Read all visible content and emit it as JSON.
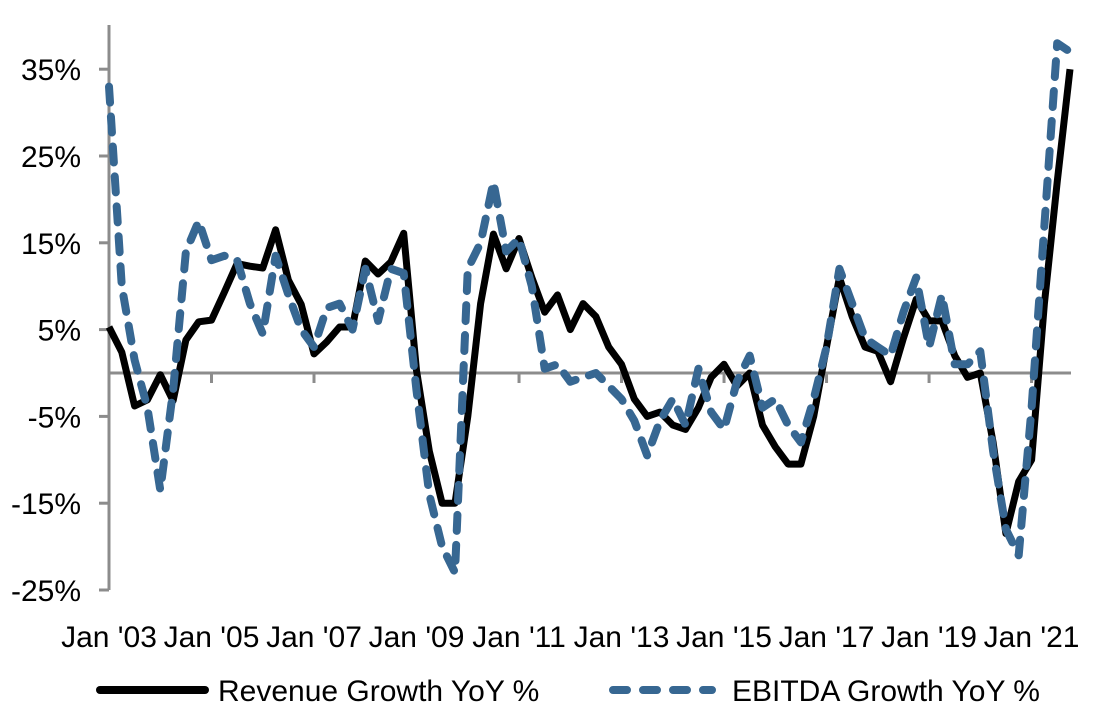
{
  "chart_data": {
    "type": "line",
    "title": "",
    "xlabel": "",
    "ylabel": "",
    "ylim": [
      -25,
      40
    ],
    "y_ticks": [
      35,
      25,
      15,
      5,
      -5,
      -15,
      -25
    ],
    "y_tick_labels": [
      "35%",
      "25%",
      "15%",
      "5%",
      "-5%",
      "-15%",
      "-25%"
    ],
    "x_tick_labels": [
      "Jan '03",
      "Jan '05",
      "Jan '07",
      "Jan '09",
      "Jan '11",
      "Jan '13",
      "Jan '15",
      "Jan '17",
      "Jan '19",
      "Jan '21"
    ],
    "x_frequency": "quarterly",
    "x_start": "Q1 2003",
    "x_end": "Q4 2021",
    "grid": false,
    "zero_line": true,
    "legend_position": "bottom",
    "series": [
      {
        "name": "Revenue Growth YoY %",
        "color": "#000000",
        "style": "solid",
        "values": [
          5.3,
          2.4,
          -3.8,
          -3.1,
          -0.2,
          -3.2,
          3.8,
          5.9,
          6.1,
          9.3,
          12.6,
          12.3,
          12.1,
          16.5,
          10.7,
          7.9,
          2.2,
          3.6,
          5.3,
          5.3,
          12.9,
          11.4,
          12.8,
          16.1,
          0.3,
          -9.0,
          -15.0,
          -15.0,
          -5.0,
          8.0,
          16.0,
          12.0,
          15.5,
          11.0,
          7.0,
          9.0,
          5.0,
          8.0,
          6.5,
          3.0,
          1.0,
          -3.0,
          -5.0,
          -4.5,
          -6.0,
          -6.5,
          -4.0,
          -0.5,
          1.0,
          -1.5,
          0.0,
          -6.0,
          -8.5,
          -10.5,
          -10.5,
          -5.0,
          3.0,
          11.0,
          6.5,
          3.0,
          2.5,
          -1.0,
          4.0,
          8.5,
          6.0,
          6.0,
          2.0,
          -0.5,
          0.0,
          -8.0,
          -18.5,
          -12.5,
          -10.0,
          8.0,
          22.0,
          35.0
        ]
      },
      {
        "name": "EBITDA Growth YoY %",
        "color": "#376792",
        "style": "dashed",
        "values": [
          33.0,
          10.0,
          1.5,
          -4.0,
          -13.5,
          -2.0,
          14.0,
          17.5,
          13.0,
          13.5,
          13.0,
          8.0,
          4.5,
          13.5,
          9.0,
          5.0,
          3.0,
          7.5,
          8.0,
          5.0,
          12.0,
          6.0,
          12.0,
          11.5,
          -2.0,
          -14.0,
          -20.0,
          -23.0,
          12.0,
          15.0,
          22.0,
          14.0,
          15.5,
          10.0,
          0.5,
          1.0,
          -1.0,
          -0.5,
          0.0,
          -1.5,
          -3.0,
          -5.5,
          -9.5,
          -5.5,
          -3.0,
          -6.0,
          0.5,
          -4.5,
          -6.5,
          -1.0,
          2.0,
          -4.0,
          -3.0,
          -6.0,
          -8.0,
          -3.0,
          3.0,
          12.0,
          8.0,
          4.0,
          3.0,
          2.0,
          7.0,
          11.0,
          3.0,
          9.0,
          1.0,
          1.0,
          2.5,
          -9.0,
          -18.0,
          -21.0,
          -4.0,
          17.0,
          38.0,
          37.0
        ]
      }
    ]
  }
}
